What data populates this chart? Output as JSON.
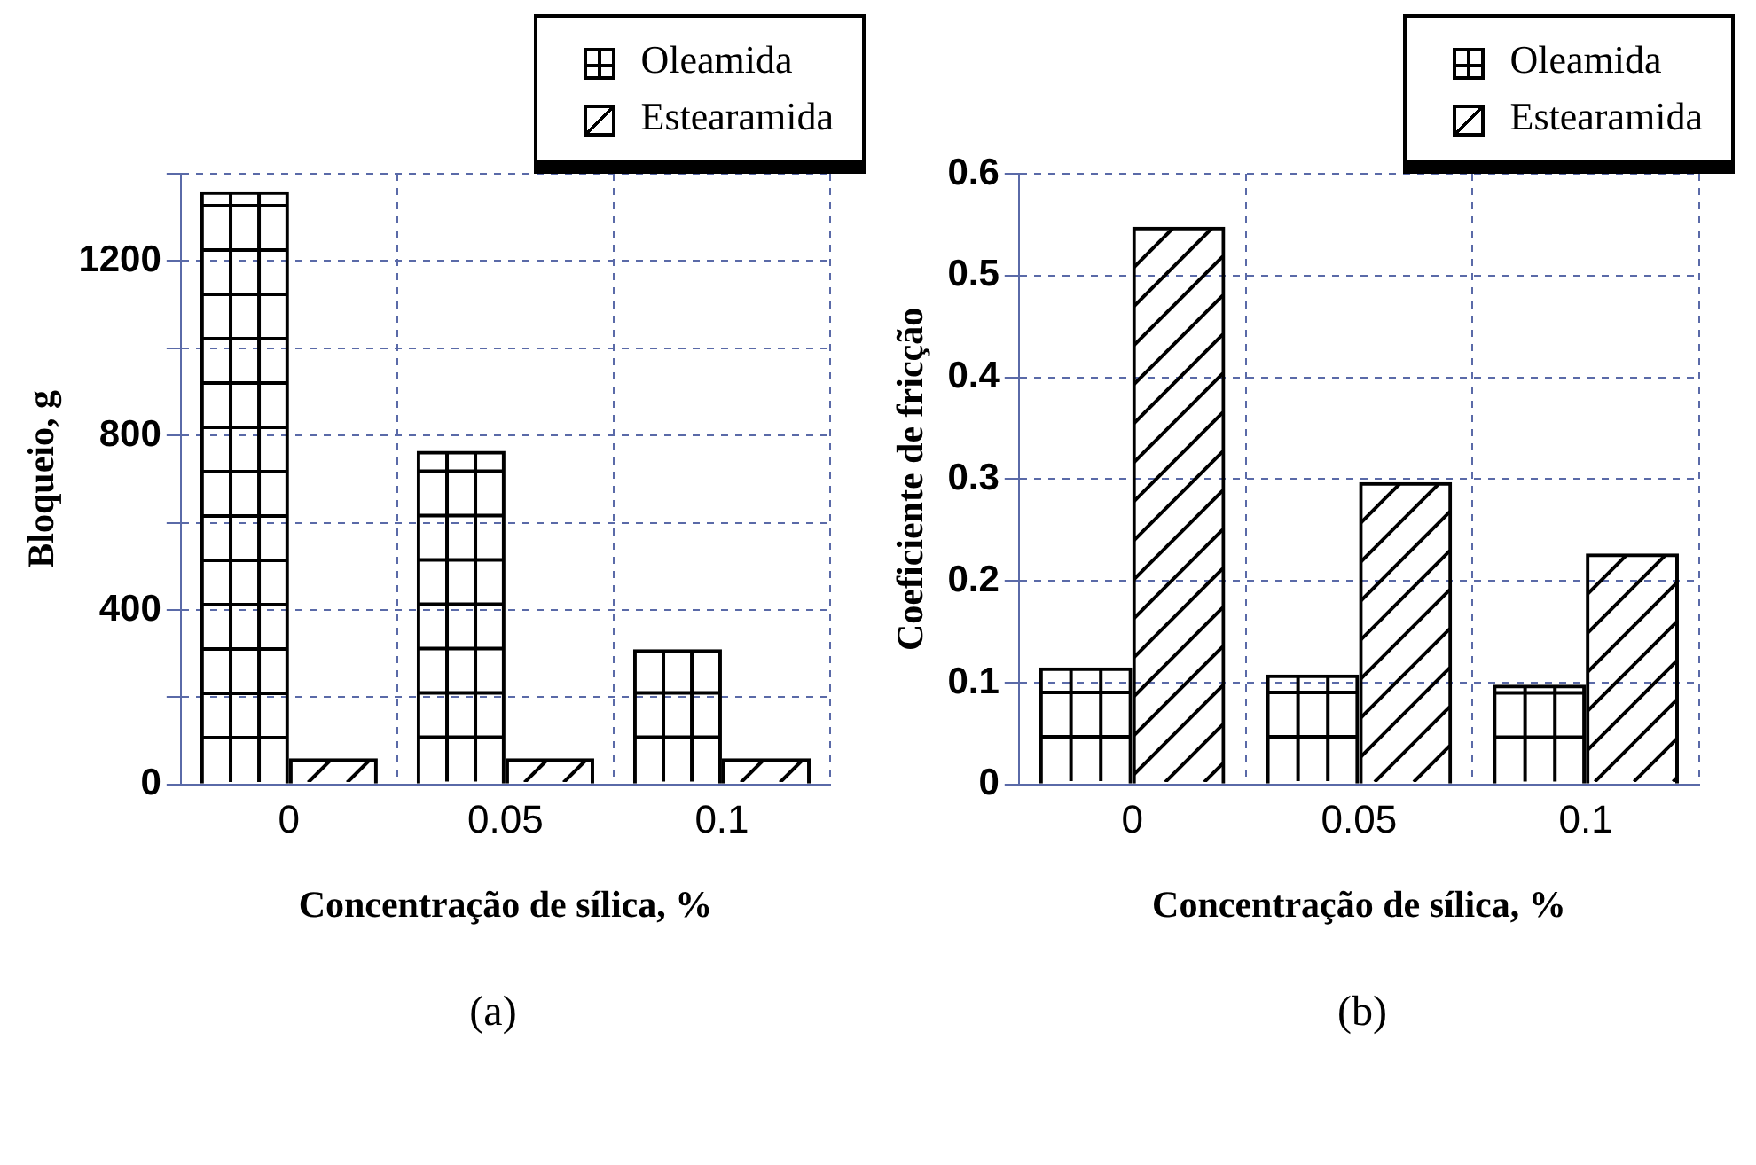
{
  "chart_data": [
    {
      "type": "bar",
      "xlabel": "Concentração de sílica, %",
      "ylabel": "Bloqueio, g",
      "categories": [
        "0",
        "0.05",
        "0.1"
      ],
      "series": [
        {
          "name": "Oleamida",
          "color": "#000000",
          "values": [
            1360,
            765,
            310
          ]
        },
        {
          "name": "Estearamida",
          "color": "#000000",
          "values": [
            60,
            60,
            60
          ]
        }
      ],
      "ylim": [
        0,
        1400
      ],
      "yticks": [
        0,
        {
          "value": 200,
          "label": null
        },
        400,
        {
          "value": 600,
          "label": null
        },
        800,
        {
          "value": 1000,
          "label": null
        },
        1200,
        {
          "value": 1400,
          "label": null
        }
      ],
      "grid": true,
      "legend": "top right",
      "annotations": [
        "(a)"
      ]
    },
    {
      "type": "bar",
      "xlabel": "Concentração de sílica, %",
      "ylabel": "Coeficiente de fricção",
      "categories": [
        "0",
        "0.05",
        "0.1"
      ],
      "series": [
        {
          "name": "Oleamida",
          "color": "#000000",
          "values": [
            0.115,
            0.108,
            0.098
          ]
        },
        {
          "name": "Estearamida",
          "color": "#000000",
          "values": [
            0.548,
            0.297,
            0.227
          ]
        }
      ],
      "ylim": [
        0,
        0.6
      ],
      "yticks": [
        0,
        0.1,
        0.2,
        0.3,
        0.4,
        0.5,
        0.6
      ],
      "grid": true,
      "legend": "top right",
      "annotations": [
        "(b)"
      ]
    }
  ]
}
